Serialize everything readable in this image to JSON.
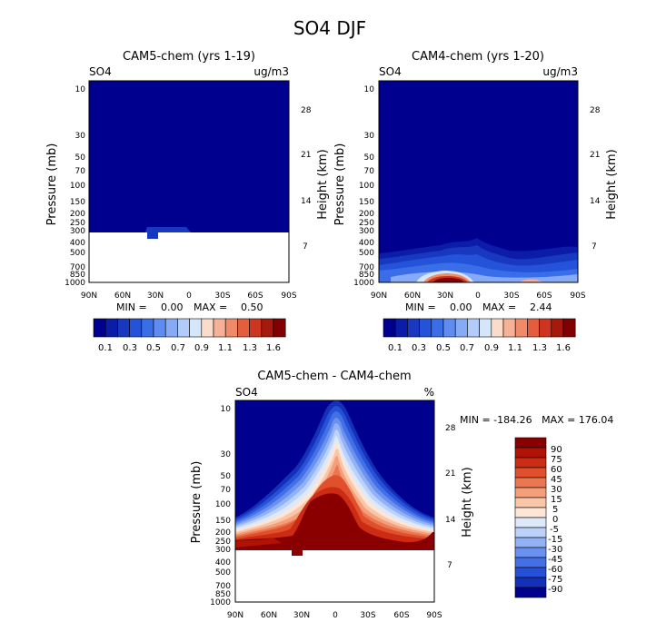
{
  "figure_title": "SO4 DJF",
  "chart_data": [
    {
      "type": "heatmap",
      "id": "cam5",
      "title": "CAM5-chem (yrs 1-19)",
      "variable": "SO4",
      "units": "ug/m3",
      "xlabel": "",
      "ylabel": "Pressure (mb)",
      "ylabel_right": "Height (km)",
      "x_ticks": [
        "90N",
        "60N",
        "30N",
        "0",
        "30S",
        "60S",
        "90S"
      ],
      "y_ticks": [
        "10",
        "30",
        "50",
        "70",
        "100",
        "150",
        "200",
        "250",
        "300",
        "400",
        "500",
        "700",
        "850",
        "1000"
      ],
      "height_ticks": [
        "28",
        "21",
        "14",
        "7"
      ],
      "min_label": "MIN =",
      "min": "0.00",
      "max_label": "MAX =",
      "max": "0.50",
      "colorbar_labels": [
        "0.1",
        "0.3",
        "0.5",
        "0.7",
        "0.9",
        "1.1",
        "1.3",
        "1.6"
      ]
    },
    {
      "type": "heatmap",
      "id": "cam4",
      "title": "CAM4-chem (yrs 1-20)",
      "variable": "SO4",
      "units": "ug/m3",
      "xlabel": "",
      "ylabel": "Pressure (mb)",
      "ylabel_right": "Height (km)",
      "x_ticks": [
        "90N",
        "60N",
        "30N",
        "0",
        "30S",
        "60S",
        "90S"
      ],
      "y_ticks": [
        "10",
        "30",
        "50",
        "70",
        "100",
        "150",
        "200",
        "250",
        "300",
        "400",
        "500",
        "700",
        "850",
        "1000"
      ],
      "height_ticks": [
        "28",
        "21",
        "14",
        "7"
      ],
      "min_label": "MIN =",
      "min": "0.00",
      "max_label": "MAX =",
      "max": "2.44",
      "colorbar_labels": [
        "0.1",
        "0.3",
        "0.5",
        "0.7",
        "0.9",
        "1.1",
        "1.3",
        "1.6"
      ]
    },
    {
      "type": "heatmap",
      "id": "diff",
      "title": "CAM5-chem - CAM4-chem",
      "variable": "SO4",
      "units": "%",
      "xlabel": "",
      "ylabel": "Pressure (mb)",
      "ylabel_right": "Height (km)",
      "x_ticks": [
        "90N",
        "60N",
        "30N",
        "0",
        "30S",
        "60S",
        "90S"
      ],
      "y_ticks": [
        "10",
        "30",
        "50",
        "70",
        "100",
        "150",
        "200",
        "250",
        "300",
        "400",
        "500",
        "700",
        "850",
        "1000"
      ],
      "height_ticks": [
        "28",
        "21",
        "14",
        "7"
      ],
      "minmax_text": "MIN = -184.26   MAX = 176.04",
      "colorbar_labels": [
        "90",
        "75",
        "60",
        "45",
        "30",
        "15",
        "5",
        "0",
        "-5",
        "-15",
        "-30",
        "-45",
        "-60",
        "-75",
        "-90"
      ]
    }
  ],
  "colors": {
    "abs_scale": [
      "#00008f",
      "#0a1ca8",
      "#1838c0",
      "#2452d8",
      "#3a6ee8",
      "#5e8cf2",
      "#86aaf6",
      "#b2cbf8",
      "#d6e6fa",
      "#fbdccb",
      "#f6b196",
      "#f08a68",
      "#e45e3e",
      "#cc3620",
      "#a61a0e",
      "#820000"
    ],
    "diff_scale": [
      "#8a0000",
      "#b01206",
      "#cc2c14",
      "#e0502c",
      "#ec7650",
      "#f49e7a",
      "#f9c6a8",
      "#fde6d6",
      "#dde9fb",
      "#bcd2fa",
      "#92b2f6",
      "#6a90f0",
      "#4470e6",
      "#2650d6",
      "#1430b8",
      "#00008f"
    ]
  }
}
